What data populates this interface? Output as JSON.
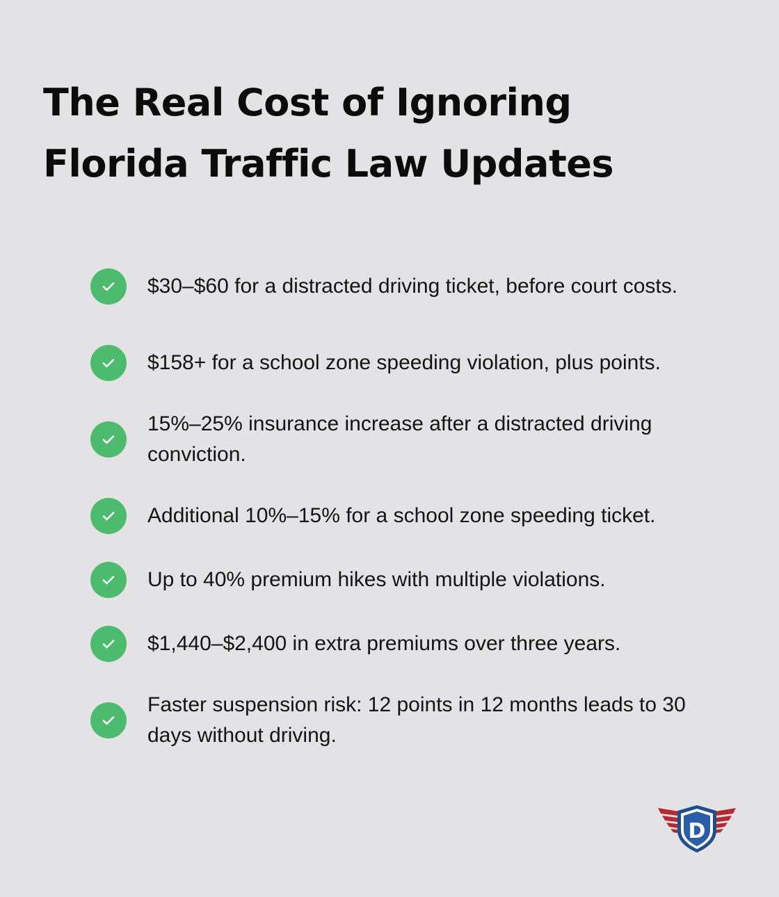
{
  "title": {
    "line1": "The Real Cost of Ignoring",
    "line2": "Florida Traffic Law Updates"
  },
  "items": [
    {
      "text": "$30–$60 for a distracted driving ticket, before court costs."
    },
    {
      "text": "$158+ for a school zone speeding violation, plus points."
    },
    {
      "text": "15%–25% insurance increase after a distracted driving conviction."
    },
    {
      "text": "Additional 10%–15% for a school zone speeding ticket."
    },
    {
      "text": "Up to 40% premium hikes with multiple violations."
    },
    {
      "text": "$1,440–$2,400 in extra premiums over three years."
    },
    {
      "text": "Faster suspension risk: 12 points in 12 months leads to 30 days without driving."
    }
  ],
  "icons": {
    "check": "check-icon",
    "logo": "shield-d-logo"
  },
  "colors": {
    "background": "#e3e3e5",
    "check_circle": "#4dbb6e",
    "logo_shield": "#1f4e8c",
    "logo_wings": "#b52a2f"
  },
  "logo": {
    "letter": "D"
  }
}
